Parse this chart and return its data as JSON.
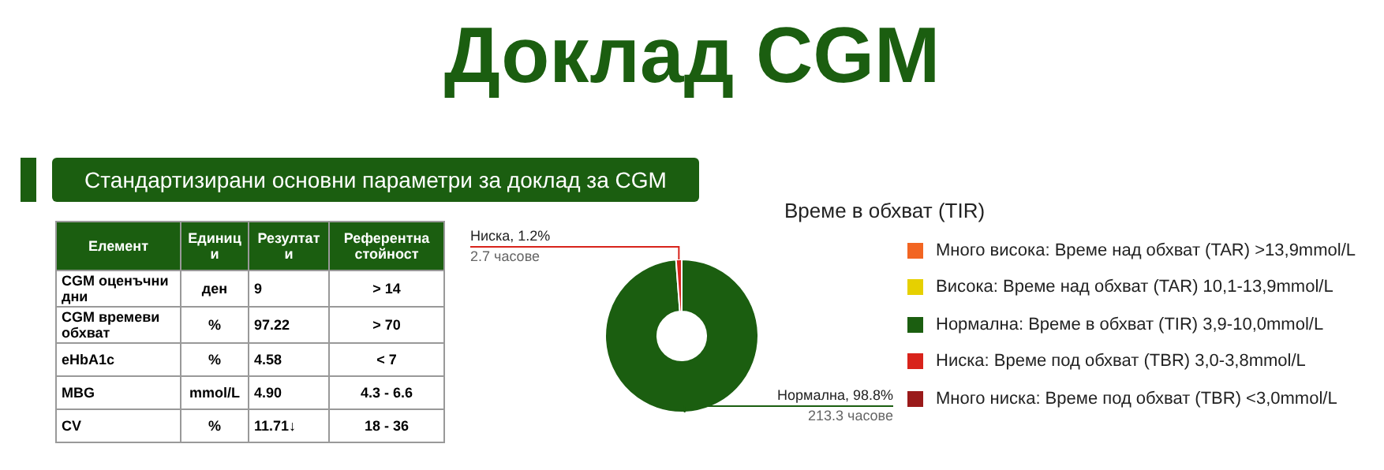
{
  "chart_data": [
    {
      "type": "other",
      "title": "Доклад CGM",
      "subtitle": "Стандартизирани основни параметри за доклад за CGM",
      "categories": [
        "Елемент",
        "Единици",
        "Резултати",
        "Референтна стойност"
      ],
      "annotations": [
        "CGM оценъчни дни",
        "ден",
        "9",
        "> 14",
        "CGM времеви обхват",
        "%",
        "97.22",
        "> 70",
        "eHbA1c",
        "%",
        "4.58",
        "< 7",
        "MBG",
        "mmol/L",
        "4.90",
        "4.3 - 6.6",
        "CV",
        "%",
        "11.71↓",
        "18 - 36"
      ]
    },
    {
      "type": "donut",
      "title": "Време в обхват (TIR)",
      "categories": [
        "Много висока: Време над обхват (TAR) >13,9mmol/L",
        "Висока: Време над обхват (TAR) 10,1-13,9mmol/L",
        "Нормална: Време в обхват (TIR) 3,9-10,0mmol/L",
        "Ниска: Време под обхват (TBR) 3,0-3,8mmol/L",
        "Много ниска: Време под обхват (TBR) <3,0mmol/L"
      ],
      "values": [
        0,
        0,
        98.8,
        1.2,
        0
      ],
      "colors": [
        "#f26522",
        "#e6d000",
        "#1b5e10",
        "#d8231b",
        "#9a1a1a"
      ],
      "value_labels": [
        null,
        null,
        "Нормална, 98.8%",
        "Ниска, 1.2%",
        null
      ],
      "annotations": [
        "213.3 часове",
        "2.7 часове"
      ],
      "legend": "right"
    }
  ]
}
